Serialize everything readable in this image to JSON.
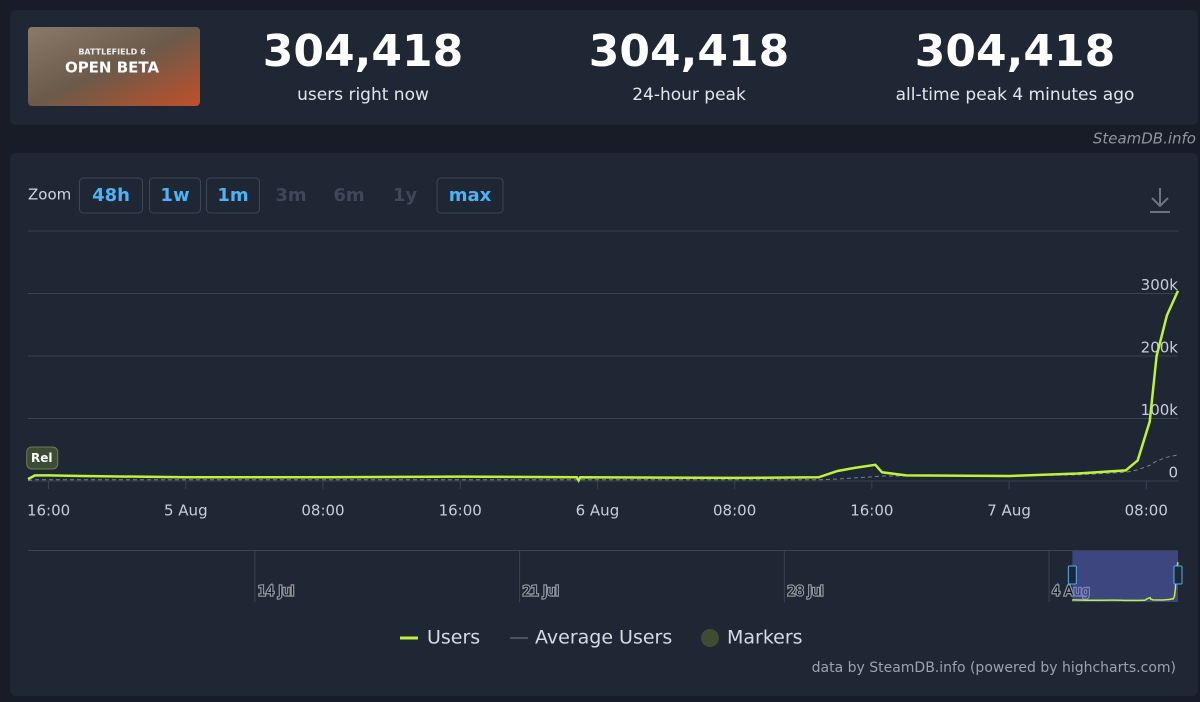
{
  "header": {
    "game_image": {
      "caption": "BATTLEFIELD 6",
      "title": "OPEN BETA"
    },
    "stats": [
      {
        "value": "304,418",
        "label": "users right now"
      },
      {
        "value": "304,418",
        "label": "24-hour peak"
      },
      {
        "value": "304,418",
        "label": "all-time peak 4 minutes ago"
      }
    ],
    "site": "SteamDB.info"
  },
  "zoom": {
    "label": "Zoom",
    "buttons": [
      {
        "label": "48h",
        "enabled": true
      },
      {
        "label": "1w",
        "enabled": true
      },
      {
        "label": "1m",
        "enabled": true
      },
      {
        "label": "3m",
        "enabled": false
      },
      {
        "label": "6m",
        "enabled": false
      },
      {
        "label": "1y",
        "enabled": false
      },
      {
        "label": "max",
        "enabled": true
      }
    ]
  },
  "chart_data": {
    "type": "line",
    "x": [
      14.8,
      15.2,
      16,
      18,
      24,
      32,
      40,
      46.8,
      46.9,
      47,
      56,
      60.9,
      62,
      63,
      64.2,
      64.6,
      66,
      72,
      76,
      78.8,
      79.5,
      80.2,
      80.6,
      81.2,
      81.85
    ],
    "series": [
      {
        "name": "Users",
        "color": "#bff23a",
        "style": "solid",
        "values": [
          3000,
          9000,
          9000,
          8000,
          6000,
          6000,
          7000,
          6000,
          1000,
          6000,
          5000,
          6000,
          16000,
          21000,
          26000,
          14000,
          9000,
          8000,
          12000,
          17000,
          33000,
          95000,
          200000,
          265000,
          304418
        ]
      },
      {
        "name": "Average Users",
        "color": "#7b828c",
        "style": "dashed",
        "values": [
          1000,
          2000,
          2000,
          2000,
          2000,
          2000,
          2000,
          2000,
          2000,
          2000,
          2000,
          2000,
          3000,
          5000,
          7000,
          8000,
          8000,
          8000,
          10000,
          14000,
          18000,
          25000,
          32000,
          38000,
          42000
        ]
      }
    ],
    "markers": {
      "name": "Markers",
      "color": "#3d4d33",
      "points": [
        {
          "x": 15.6,
          "label": "Rel"
        }
      ]
    },
    "xlim": [
      14.8,
      81.85
    ],
    "xticks": [
      {
        "value": 16,
        "label": "16:00"
      },
      {
        "value": 24,
        "label": "5 Aug"
      },
      {
        "value": 32,
        "label": "08:00"
      },
      {
        "value": 40,
        "label": "16:00"
      },
      {
        "value": 48,
        "label": "6 Aug"
      },
      {
        "value": 56,
        "label": "08:00"
      },
      {
        "value": 64,
        "label": "16:00"
      },
      {
        "value": 72,
        "label": "7 Aug"
      },
      {
        "value": 80,
        "label": "08:00"
      }
    ],
    "ylim": [
      0,
      400000
    ],
    "yticks": [
      0,
      {
        "value": 100000,
        "label": "100k"
      },
      {
        "value": 200000,
        "label": "200k"
      },
      {
        "value": 300000,
        "label": "300k"
      }
    ],
    "grid": true,
    "navigator": {
      "xlim": [
        -648,
        81.85
      ],
      "xticks": [
        {
          "value": -504,
          "label": "14 Jul"
        },
        {
          "value": -336,
          "label": "21 Jul"
        },
        {
          "value": -168,
          "label": "28 Jul"
        },
        {
          "value": 0,
          "label": "4 Aug"
        }
      ]
    },
    "credit": "data by SteamDB.info (powered by highcharts.com)"
  }
}
